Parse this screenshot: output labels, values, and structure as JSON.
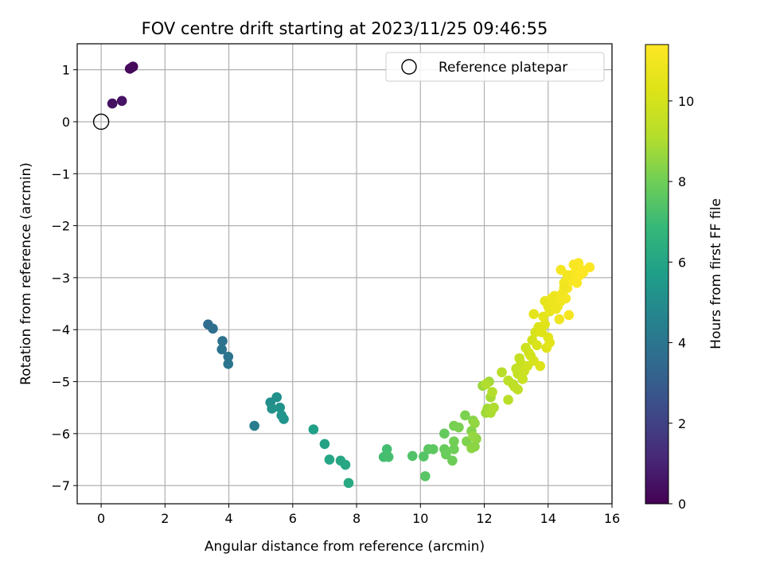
{
  "chart_data": {
    "type": "scatter",
    "title": "FOV centre drift starting at 2023/11/25 09:46:55",
    "xlabel": "Angular distance from reference (arcmin)",
    "ylabel": "Rotation from reference (arcmin)",
    "xlim": [
      -0.75,
      16.0
    ],
    "ylim": [
      -7.35,
      1.5
    ],
    "xticks": [
      0,
      2,
      4,
      6,
      8,
      10,
      12,
      14,
      16
    ],
    "yticks": [
      1,
      0,
      -1,
      -2,
      -3,
      -4,
      -5,
      -6,
      -7
    ],
    "grid": true,
    "legend": {
      "position": "top-right",
      "entries": [
        "Reference platepar"
      ]
    },
    "reference_point": {
      "x": 0,
      "y": 0
    },
    "colorbar": {
      "label": "Hours from first FF file",
      "range": [
        0,
        11.4
      ],
      "ticks": [
        0,
        2,
        4,
        6,
        8,
        10
      ],
      "colormap": "viridis"
    },
    "points": [
      {
        "x": 0.9,
        "y": 1.02,
        "h": 0.15
      },
      {
        "x": 1.0,
        "y": 1.06,
        "h": 0.2
      },
      {
        "x": 0.95,
        "y": 1.04,
        "h": 0.25
      },
      {
        "x": 0.35,
        "y": 0.35,
        "h": 0.45
      },
      {
        "x": 0.65,
        "y": 0.4,
        "h": 0.5
      },
      {
        "x": 3.35,
        "y": -3.9,
        "h": 3.6
      },
      {
        "x": 3.5,
        "y": -3.98,
        "h": 3.7
      },
      {
        "x": 3.8,
        "y": -4.22,
        "h": 3.85
      },
      {
        "x": 3.78,
        "y": -4.38,
        "h": 3.9
      },
      {
        "x": 3.98,
        "y": -4.52,
        "h": 3.95
      },
      {
        "x": 3.98,
        "y": -4.66,
        "h": 4.0
      },
      {
        "x": 4.8,
        "y": -5.85,
        "h": 4.4
      },
      {
        "x": 5.3,
        "y": -5.4,
        "h": 5.1
      },
      {
        "x": 5.5,
        "y": -5.3,
        "h": 5.15
      },
      {
        "x": 5.35,
        "y": -5.52,
        "h": 5.2
      },
      {
        "x": 5.6,
        "y": -5.5,
        "h": 5.25
      },
      {
        "x": 5.65,
        "y": -5.65,
        "h": 5.3
      },
      {
        "x": 5.72,
        "y": -5.72,
        "h": 5.35
      },
      {
        "x": 6.65,
        "y": -5.92,
        "h": 5.8
      },
      {
        "x": 7.0,
        "y": -6.2,
        "h": 5.9
      },
      {
        "x": 7.15,
        "y": -6.5,
        "h": 6.0
      },
      {
        "x": 7.5,
        "y": -6.52,
        "h": 6.05
      },
      {
        "x": 7.65,
        "y": -6.6,
        "h": 6.1
      },
      {
        "x": 7.75,
        "y": -6.95,
        "h": 6.2
      },
      {
        "x": 8.85,
        "y": -6.45,
        "h": 7.1
      },
      {
        "x": 8.95,
        "y": -6.3,
        "h": 7.15
      },
      {
        "x": 9.0,
        "y": -6.45,
        "h": 7.2
      },
      {
        "x": 9.75,
        "y": -6.43,
        "h": 7.4
      },
      {
        "x": 10.1,
        "y": -6.44,
        "h": 7.5
      },
      {
        "x": 10.15,
        "y": -6.82,
        "h": 7.55
      },
      {
        "x": 10.25,
        "y": -6.3,
        "h": 7.6
      },
      {
        "x": 10.4,
        "y": -6.3,
        "h": 7.65
      },
      {
        "x": 10.75,
        "y": -6.0,
        "h": 7.8
      },
      {
        "x": 10.75,
        "y": -6.3,
        "h": 7.85
      },
      {
        "x": 10.8,
        "y": -6.4,
        "h": 7.9
      },
      {
        "x": 11.0,
        "y": -6.52,
        "h": 7.95
      },
      {
        "x": 11.05,
        "y": -6.3,
        "h": 8.0
      },
      {
        "x": 11.05,
        "y": -6.15,
        "h": 8.05
      },
      {
        "x": 11.05,
        "y": -5.85,
        "h": 8.1
      },
      {
        "x": 11.2,
        "y": -5.88,
        "h": 8.15
      },
      {
        "x": 11.4,
        "y": -5.65,
        "h": 8.2
      },
      {
        "x": 11.45,
        "y": -6.15,
        "h": 8.25
      },
      {
        "x": 11.6,
        "y": -5.95,
        "h": 8.3
      },
      {
        "x": 11.65,
        "y": -5.75,
        "h": 8.35
      },
      {
        "x": 11.7,
        "y": -6.25,
        "h": 8.4
      },
      {
        "x": 11.6,
        "y": -6.28,
        "h": 8.45
      },
      {
        "x": 11.75,
        "y": -6.1,
        "h": 8.5
      },
      {
        "x": 11.7,
        "y": -5.8,
        "h": 8.55
      },
      {
        "x": 11.65,
        "y": -6.05,
        "h": 8.6
      },
      {
        "x": 11.95,
        "y": -5.08,
        "h": 8.7
      },
      {
        "x": 12.05,
        "y": -5.6,
        "h": 8.75
      },
      {
        "x": 12.1,
        "y": -5.52,
        "h": 8.8
      },
      {
        "x": 12.15,
        "y": -5.0,
        "h": 8.85
      },
      {
        "x": 12.2,
        "y": -5.3,
        "h": 8.9
      },
      {
        "x": 12.2,
        "y": -5.6,
        "h": 8.95
      },
      {
        "x": 12.3,
        "y": -5.5,
        "h": 9.0
      },
      {
        "x": 12.05,
        "y": -5.05,
        "h": 9.05
      },
      {
        "x": 12.25,
        "y": -5.2,
        "h": 9.1
      },
      {
        "x": 12.55,
        "y": -4.82,
        "h": 9.2
      },
      {
        "x": 12.75,
        "y": -5.35,
        "h": 9.25
      },
      {
        "x": 12.75,
        "y": -4.98,
        "h": 9.3
      },
      {
        "x": 12.9,
        "y": -5.05,
        "h": 9.35
      },
      {
        "x": 12.95,
        "y": -5.1,
        "h": 9.4
      },
      {
        "x": 13.05,
        "y": -5.15,
        "h": 9.45
      },
      {
        "x": 13.0,
        "y": -4.75,
        "h": 9.5
      },
      {
        "x": 13.05,
        "y": -4.85,
        "h": 9.55
      },
      {
        "x": 13.1,
        "y": -4.55,
        "h": 9.6
      },
      {
        "x": 13.15,
        "y": -4.65,
        "h": 9.65
      },
      {
        "x": 13.2,
        "y": -4.95,
        "h": 9.7
      },
      {
        "x": 13.25,
        "y": -4.8,
        "h": 9.75
      },
      {
        "x": 13.3,
        "y": -4.35,
        "h": 9.8
      },
      {
        "x": 13.35,
        "y": -4.7,
        "h": 9.85
      },
      {
        "x": 13.4,
        "y": -4.45,
        "h": 9.9
      },
      {
        "x": 13.45,
        "y": -4.5,
        "h": 9.95
      },
      {
        "x": 13.5,
        "y": -4.2,
        "h": 10.0
      },
      {
        "x": 13.55,
        "y": -4.6,
        "h": 10.05
      },
      {
        "x": 13.6,
        "y": -4.05,
        "h": 10.1
      },
      {
        "x": 13.65,
        "y": -4.3,
        "h": 10.15
      },
      {
        "x": 13.7,
        "y": -3.95,
        "h": 10.2
      },
      {
        "x": 13.75,
        "y": -4.7,
        "h": 10.25
      },
      {
        "x": 13.8,
        "y": -4.05,
        "h": 10.3
      },
      {
        "x": 13.9,
        "y": -3.9,
        "h": 10.35
      },
      {
        "x": 13.95,
        "y": -4.35,
        "h": 10.4
      },
      {
        "x": 14.0,
        "y": -4.15,
        "h": 10.45
      },
      {
        "x": 14.05,
        "y": -4.25,
        "h": 10.5
      },
      {
        "x": 13.55,
        "y": -3.7,
        "h": 10.5
      },
      {
        "x": 13.85,
        "y": -3.75,
        "h": 10.55
      },
      {
        "x": 13.9,
        "y": -3.45,
        "h": 10.6
      },
      {
        "x": 14.0,
        "y": -3.55,
        "h": 10.65
      },
      {
        "x": 14.05,
        "y": -3.65,
        "h": 10.7
      },
      {
        "x": 14.1,
        "y": -3.4,
        "h": 10.75
      },
      {
        "x": 14.15,
        "y": -3.5,
        "h": 10.8
      },
      {
        "x": 14.2,
        "y": -3.35,
        "h": 10.85
      },
      {
        "x": 14.3,
        "y": -3.55,
        "h": 10.9
      },
      {
        "x": 14.35,
        "y": -3.8,
        "h": 10.95
      },
      {
        "x": 14.4,
        "y": -3.45,
        "h": 11.0
      },
      {
        "x": 14.45,
        "y": -3.3,
        "h": 11.0
      },
      {
        "x": 14.5,
        "y": -3.1,
        "h": 11.05
      },
      {
        "x": 14.55,
        "y": -3.4,
        "h": 11.1
      },
      {
        "x": 14.4,
        "y": -2.85,
        "h": 11.1
      },
      {
        "x": 14.6,
        "y": -3.2,
        "h": 11.15
      },
      {
        "x": 14.65,
        "y": -3.72,
        "h": 11.15
      },
      {
        "x": 14.7,
        "y": -2.95,
        "h": 11.2
      },
      {
        "x": 14.75,
        "y": -3.05,
        "h": 11.2
      },
      {
        "x": 14.8,
        "y": -2.75,
        "h": 11.25
      },
      {
        "x": 14.85,
        "y": -2.9,
        "h": 11.25
      },
      {
        "x": 14.9,
        "y": -3.1,
        "h": 11.3
      },
      {
        "x": 14.95,
        "y": -2.72,
        "h": 11.3
      },
      {
        "x": 15.0,
        "y": -2.95,
        "h": 11.35
      },
      {
        "x": 15.05,
        "y": -2.85,
        "h": 11.35
      },
      {
        "x": 15.1,
        "y": -2.9,
        "h": 11.4
      },
      {
        "x": 15.3,
        "y": -2.8,
        "h": 11.4
      },
      {
        "x": 14.6,
        "y": -2.95,
        "h": 11.05
      },
      {
        "x": 14.5,
        "y": -3.2,
        "h": 10.95
      },
      {
        "x": 14.25,
        "y": -3.6,
        "h": 10.85
      }
    ]
  }
}
